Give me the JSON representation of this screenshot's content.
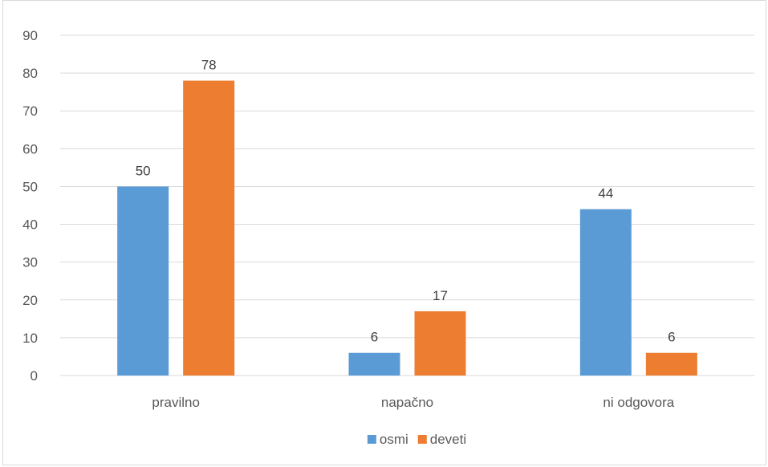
{
  "chart_data": {
    "type": "bar",
    "categories": [
      "pravilno",
      "napačno",
      "ni odgovora"
    ],
    "series": [
      {
        "name": "osmi",
        "values": [
          50,
          6,
          44
        ],
        "color": "#5b9bd5"
      },
      {
        "name": "deveti",
        "values": [
          78,
          17,
          6
        ],
        "color": "#ed7d31"
      }
    ],
    "ylim": [
      0,
      90
    ],
    "yticks": [
      0,
      10,
      20,
      30,
      40,
      50,
      60,
      70,
      80,
      90
    ],
    "grid": true,
    "data_labels": true,
    "legend_position": "bottom",
    "gridline_color": "#d9d9d9",
    "title": "",
    "xlabel": "",
    "ylabel": ""
  }
}
